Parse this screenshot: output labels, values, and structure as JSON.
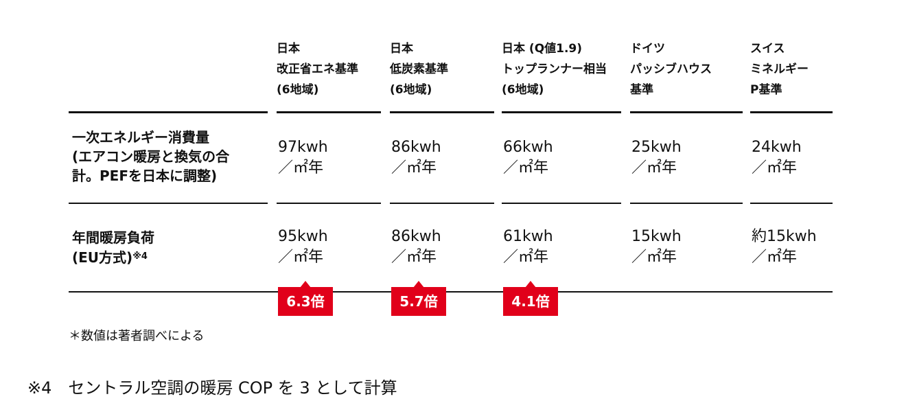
{
  "table": {
    "columns": [
      [
        "日本",
        "改正省エネ基準",
        "(6地域)"
      ],
      [
        "日本",
        "低炭素基準",
        "(6地域)"
      ],
      [
        "日本 (Q値1.9)",
        "トップランナー相当",
        "(6地域)"
      ],
      [
        "ドイツ",
        "パッシブハウス",
        "基準"
      ],
      [
        "スイス",
        "ミネルギー",
        "P基準"
      ]
    ],
    "rows": [
      {
        "label": [
          "一次エネルギー消費量",
          "(エアコン暖房と換気の合",
          "計。PEFを日本に調整)"
        ],
        "cells": [
          [
            "97kwh",
            "／㎡年"
          ],
          [
            "86kwh",
            "／㎡年"
          ],
          [
            "66kwh",
            "／㎡年"
          ],
          [
            "25kwh",
            "／㎡年"
          ],
          [
            "24kwh",
            "／㎡年"
          ]
        ]
      },
      {
        "label": [
          "年間暖房負荷",
          "(EU方式)"
        ],
        "label_note": "※4",
        "cells": [
          [
            "95kwh",
            "／㎡年"
          ],
          [
            "86kwh",
            "／㎡年"
          ],
          [
            "61kwh",
            "／㎡年"
          ],
          [
            "15kwh",
            "／㎡年"
          ],
          [
            "約15kwh",
            "／㎡年"
          ]
        ]
      }
    ],
    "badges": [
      "6.3倍",
      "5.7倍",
      "4.1倍"
    ]
  },
  "footnote": "＊数値は著者調べによる",
  "note": "※4　セントラル空調の暖房 COP を 3 として計算"
}
